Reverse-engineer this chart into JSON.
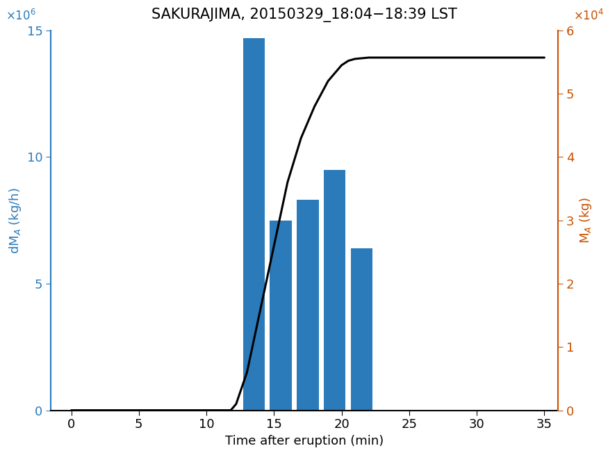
{
  "title": "SAKURAJIMA, 20150329_18:04−18:39 LST",
  "xlabel": "Time after eruption (min)",
  "ylabel_left": "dM$_A$ (kg/h)",
  "ylabel_right": "M$_A$ (kg)",
  "bar_centers": [
    13.5,
    15.5,
    17.5,
    19.5,
    21.5
  ],
  "bar_heights": [
    14700000,
    7500000,
    8300000,
    9500000,
    6400000
  ],
  "bar_width": 1.6,
  "bar_color": "#2b7bba",
  "ylim_left": [
    0,
    15000000
  ],
  "ylim_right": [
    0,
    60000
  ],
  "xlim": [
    -1.5,
    36
  ],
  "xticks": [
    0,
    5,
    10,
    15,
    20,
    25,
    30,
    35
  ],
  "yticks_left": [
    0,
    5000000,
    10000000,
    15000000
  ],
  "yticks_right": [
    0,
    10000,
    20000,
    30000,
    40000,
    50000,
    60000
  ],
  "line_x": [
    0,
    11.8,
    12.2,
    13.0,
    14.0,
    15.0,
    16.0,
    17.0,
    18.0,
    19.0,
    20.0,
    20.5,
    21.0,
    21.5,
    22.0,
    35
  ],
  "line_y": [
    0,
    0,
    1000,
    6000,
    16000,
    26000,
    36000,
    43000,
    48000,
    52000,
    54500,
    55200,
    55500,
    55600,
    55700,
    55700
  ],
  "line_color": "#000000",
  "line_width": 2.2,
  "left_color": "#2b7bba",
  "right_color": "#c85000",
  "title_fontsize": 15,
  "label_fontsize": 13,
  "tick_fontsize": 13
}
